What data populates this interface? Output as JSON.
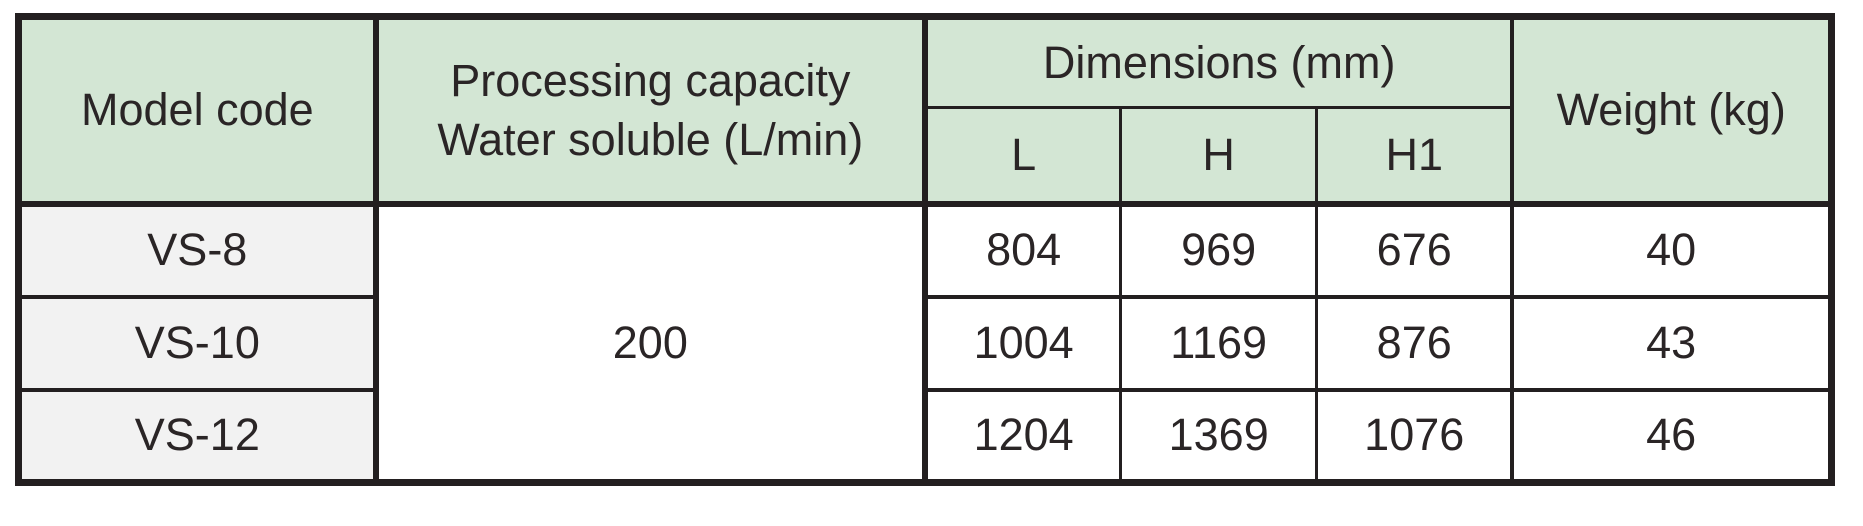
{
  "table": {
    "header": {
      "model_code": "Model code",
      "processing_capacity_line1": "Processing capacity",
      "processing_capacity_line2": "Water soluble (L/min)",
      "dimensions_group": "Dimensions (mm)",
      "dimension_cols": [
        "L",
        "H",
        "H1"
      ],
      "weight": "Weight (kg)"
    },
    "merged_capacity_value": "200",
    "rows": [
      {
        "model": "VS-8",
        "l": "804",
        "h": "969",
        "h1": "676",
        "weight": "40"
      },
      {
        "model": "VS-10",
        "l": "1004",
        "h": "1169",
        "h1": "876",
        "weight": "43"
      },
      {
        "model": "VS-12",
        "l": "1204",
        "h": "1369",
        "h1": "1076",
        "weight": "46"
      }
    ],
    "colors": {
      "header_bg": "#d3e6d4",
      "model_column_bg": "#f2f2f2",
      "border": "#231f20",
      "text": "#2a2526"
    }
  }
}
